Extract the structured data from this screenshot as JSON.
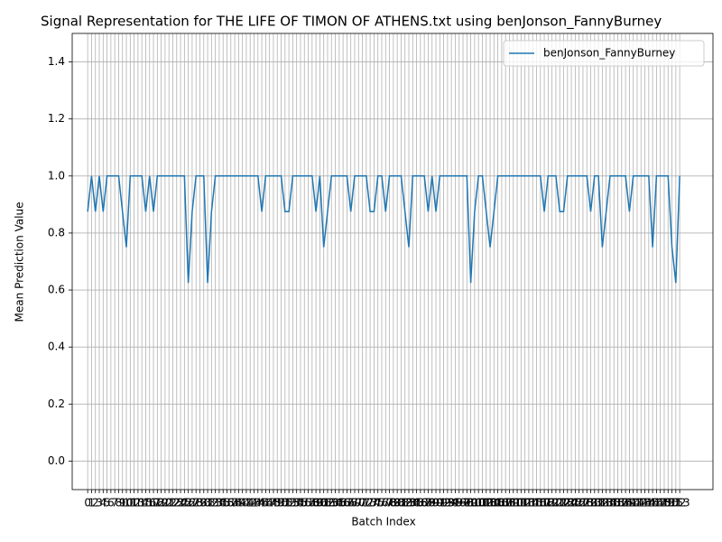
{
  "chart_data": {
    "type": "line",
    "title": "Signal Representation for THE LIFE OF TIMON OF ATHENS.txt using benJonson_FannyBurney",
    "x_label": "Batch Index",
    "y_label": "Mean Prediction Value",
    "x": [
      0,
      1,
      2,
      3,
      4,
      5,
      6,
      7,
      8,
      9,
      10,
      11,
      12,
      13,
      14,
      15,
      16,
      17,
      18,
      19,
      20,
      21,
      22,
      23,
      24,
      25,
      26,
      27,
      28,
      29,
      30,
      31,
      32,
      33,
      34,
      35,
      36,
      37,
      38,
      39,
      40,
      41,
      42,
      43,
      44,
      45,
      46,
      47,
      48,
      49,
      50,
      51,
      52,
      53,
      54,
      55,
      56,
      57,
      58,
      59,
      60,
      61,
      62,
      63,
      64,
      65,
      66,
      67,
      68,
      69,
      70,
      71,
      72,
      73,
      74,
      75,
      76,
      77,
      78,
      79,
      80,
      81,
      82,
      83,
      84,
      85,
      86,
      87,
      88,
      89,
      90,
      91,
      92,
      93,
      94,
      95,
      96,
      97,
      98,
      99,
      100,
      101,
      102,
      103,
      104,
      105,
      106,
      107,
      108,
      109,
      110,
      111,
      112,
      113,
      114,
      115,
      116,
      117,
      118,
      119,
      120,
      121,
      122,
      123,
      124,
      125,
      126,
      127,
      128,
      129,
      130,
      131,
      132,
      133,
      134,
      135,
      136,
      137,
      138,
      139,
      140,
      141,
      142,
      143,
      144,
      145,
      146,
      147,
      148,
      149,
      150,
      151,
      152,
      153
    ],
    "series": [
      {
        "name": "benJonson_FannyBurney",
        "color": "#1f77b4",
        "values": [
          0.875,
          1,
          0.875,
          1,
          0.875,
          1,
          1,
          1,
          1,
          0.875,
          0.75,
          1,
          1,
          1,
          1,
          0.875,
          1,
          0.875,
          1,
          1,
          1,
          1,
          1,
          1,
          1,
          1,
          0.625,
          0.875,
          1,
          1,
          1,
          0.625,
          0.875,
          1,
          1,
          1,
          1,
          1,
          1,
          1,
          1,
          1,
          1,
          1,
          1,
          0.875,
          1,
          1,
          1,
          1,
          1,
          0.875,
          0.875,
          1,
          1,
          1,
          1,
          1,
          1,
          0.875,
          1,
          0.75,
          0.875,
          1,
          1,
          1,
          1,
          1,
          0.875,
          1,
          1,
          1,
          1,
          0.875,
          0.875,
          1,
          1,
          0.875,
          1,
          1,
          1,
          1,
          0.875,
          0.75,
          1,
          1,
          1,
          1,
          0.875,
          1,
          0.875,
          1,
          1,
          1,
          1,
          1,
          1,
          1,
          1,
          0.625,
          0.875,
          1,
          1,
          0.875,
          0.75,
          0.875,
          1,
          1,
          1,
          1,
          1,
          1,
          1,
          1,
          1,
          1,
          1,
          1,
          0.875,
          1,
          1,
          1,
          0.875,
          0.875,
          1,
          1,
          1,
          1,
          1,
          1,
          0.875,
          1,
          1,
          0.75,
          0.875,
          1,
          1,
          1,
          1,
          1,
          0.875,
          1,
          1,
          1,
          1,
          1,
          0.75,
          1,
          1,
          1,
          1,
          0.75,
          0.625,
          1
        ]
      }
    ],
    "xlim": [
      -4,
      161.6
    ],
    "xticks": [
      0,
      1,
      2,
      3,
      4,
      5,
      6,
      7,
      8,
      9,
      10,
      11,
      12,
      13,
      14,
      15,
      16,
      17,
      18,
      19,
      20,
      21,
      22,
      23,
      24,
      25,
      26,
      27,
      28,
      29,
      30,
      31,
      32,
      33,
      34,
      35,
      36,
      37,
      38,
      39,
      40,
      41,
      42,
      43,
      44,
      45,
      46,
      47,
      48,
      49,
      50,
      51,
      52,
      53,
      54,
      55,
      56,
      57,
      58,
      59,
      60,
      61,
      62,
      63,
      64,
      65,
      66,
      67,
      68,
      69,
      70,
      71,
      72,
      73,
      74,
      75,
      76,
      77,
      78,
      79,
      80,
      81,
      82,
      83,
      84,
      85,
      86,
      87,
      88,
      89,
      90,
      91,
      92,
      93,
      94,
      95,
      96,
      97,
      98,
      99,
      100,
      101,
      102,
      103,
      104,
      105,
      106,
      107,
      108,
      109,
      110,
      111,
      112,
      113,
      114,
      115,
      116,
      117,
      118,
      119,
      120,
      121,
      122,
      123,
      124,
      125,
      126,
      127,
      128,
      129,
      130,
      131,
      132,
      133,
      134,
      135,
      136,
      137,
      138,
      139,
      140,
      141,
      142,
      143,
      144,
      145,
      146,
      147,
      148,
      149,
      150,
      151,
      152,
      153
    ],
    "ylim": [
      -0.1,
      1.5
    ],
    "yticks": [
      {
        "value": 0,
        "label": "0.0"
      },
      0.2,
      0.4,
      0.6,
      0.8,
      {
        "value": 1,
        "label": "1.0"
      },
      1.2,
      1.4
    ],
    "grid": true,
    "legend": "upper right"
  }
}
